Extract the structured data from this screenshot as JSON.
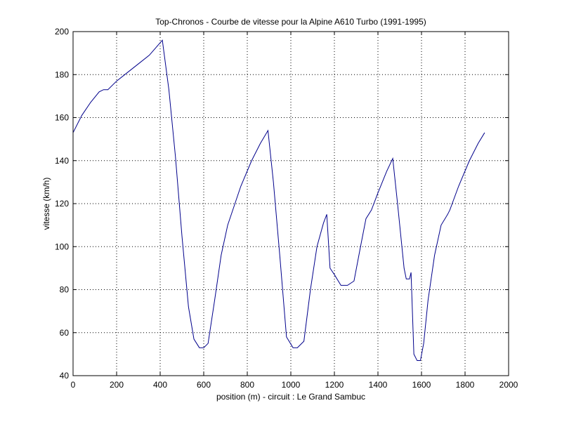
{
  "chart_data": {
    "type": "line",
    "title": "Top-Chronos - Courbe de vitesse pour la Alpine A610 Turbo (1991-1995)",
    "xlabel": "position (m) - circuit : Le Grand Sambuc",
    "ylabel": "vitesse (km/h)",
    "xlim": [
      0,
      2000
    ],
    "ylim": [
      40,
      200
    ],
    "xticks": [
      0,
      200,
      400,
      600,
      800,
      1000,
      1200,
      1400,
      1600,
      1800,
      2000
    ],
    "yticks": [
      40,
      60,
      80,
      100,
      120,
      140,
      160,
      180,
      200
    ],
    "grid": true,
    "line_color": "#00008b",
    "series": [
      {
        "x": [
          0,
          40,
          80,
          120,
          140,
          160,
          200,
          250,
          300,
          350,
          410,
          440,
          470,
          500,
          530,
          555,
          580,
          600,
          620,
          650,
          680,
          710,
          730,
          770,
          820,
          860,
          895,
          920,
          950,
          980,
          1010,
          1030,
          1060,
          1090,
          1120,
          1150,
          1165,
          1180,
          1200,
          1230,
          1260,
          1290,
          1320,
          1345,
          1370,
          1400,
          1440,
          1468,
          1490,
          1520,
          1530,
          1545,
          1552,
          1565,
          1580,
          1595,
          1610,
          1630,
          1660,
          1690,
          1720,
          1730,
          1770,
          1820,
          1860,
          1890
        ],
        "y": [
          153,
          161,
          167,
          172,
          173,
          173,
          177,
          181,
          185,
          189,
          196,
          173,
          142,
          105,
          72,
          57,
          53,
          53,
          55,
          75,
          96,
          110,
          116,
          128,
          140,
          148,
          154,
          130,
          95,
          58,
          53,
          53,
          56,
          80,
          100,
          111,
          115,
          90,
          87,
          82,
          82,
          84,
          100,
          113,
          117,
          125,
          135,
          141,
          120,
          90,
          85,
          85,
          88,
          50,
          47,
          47,
          55,
          75,
          96,
          110,
          115,
          117,
          128,
          140,
          148,
          153
        ]
      }
    ]
  }
}
